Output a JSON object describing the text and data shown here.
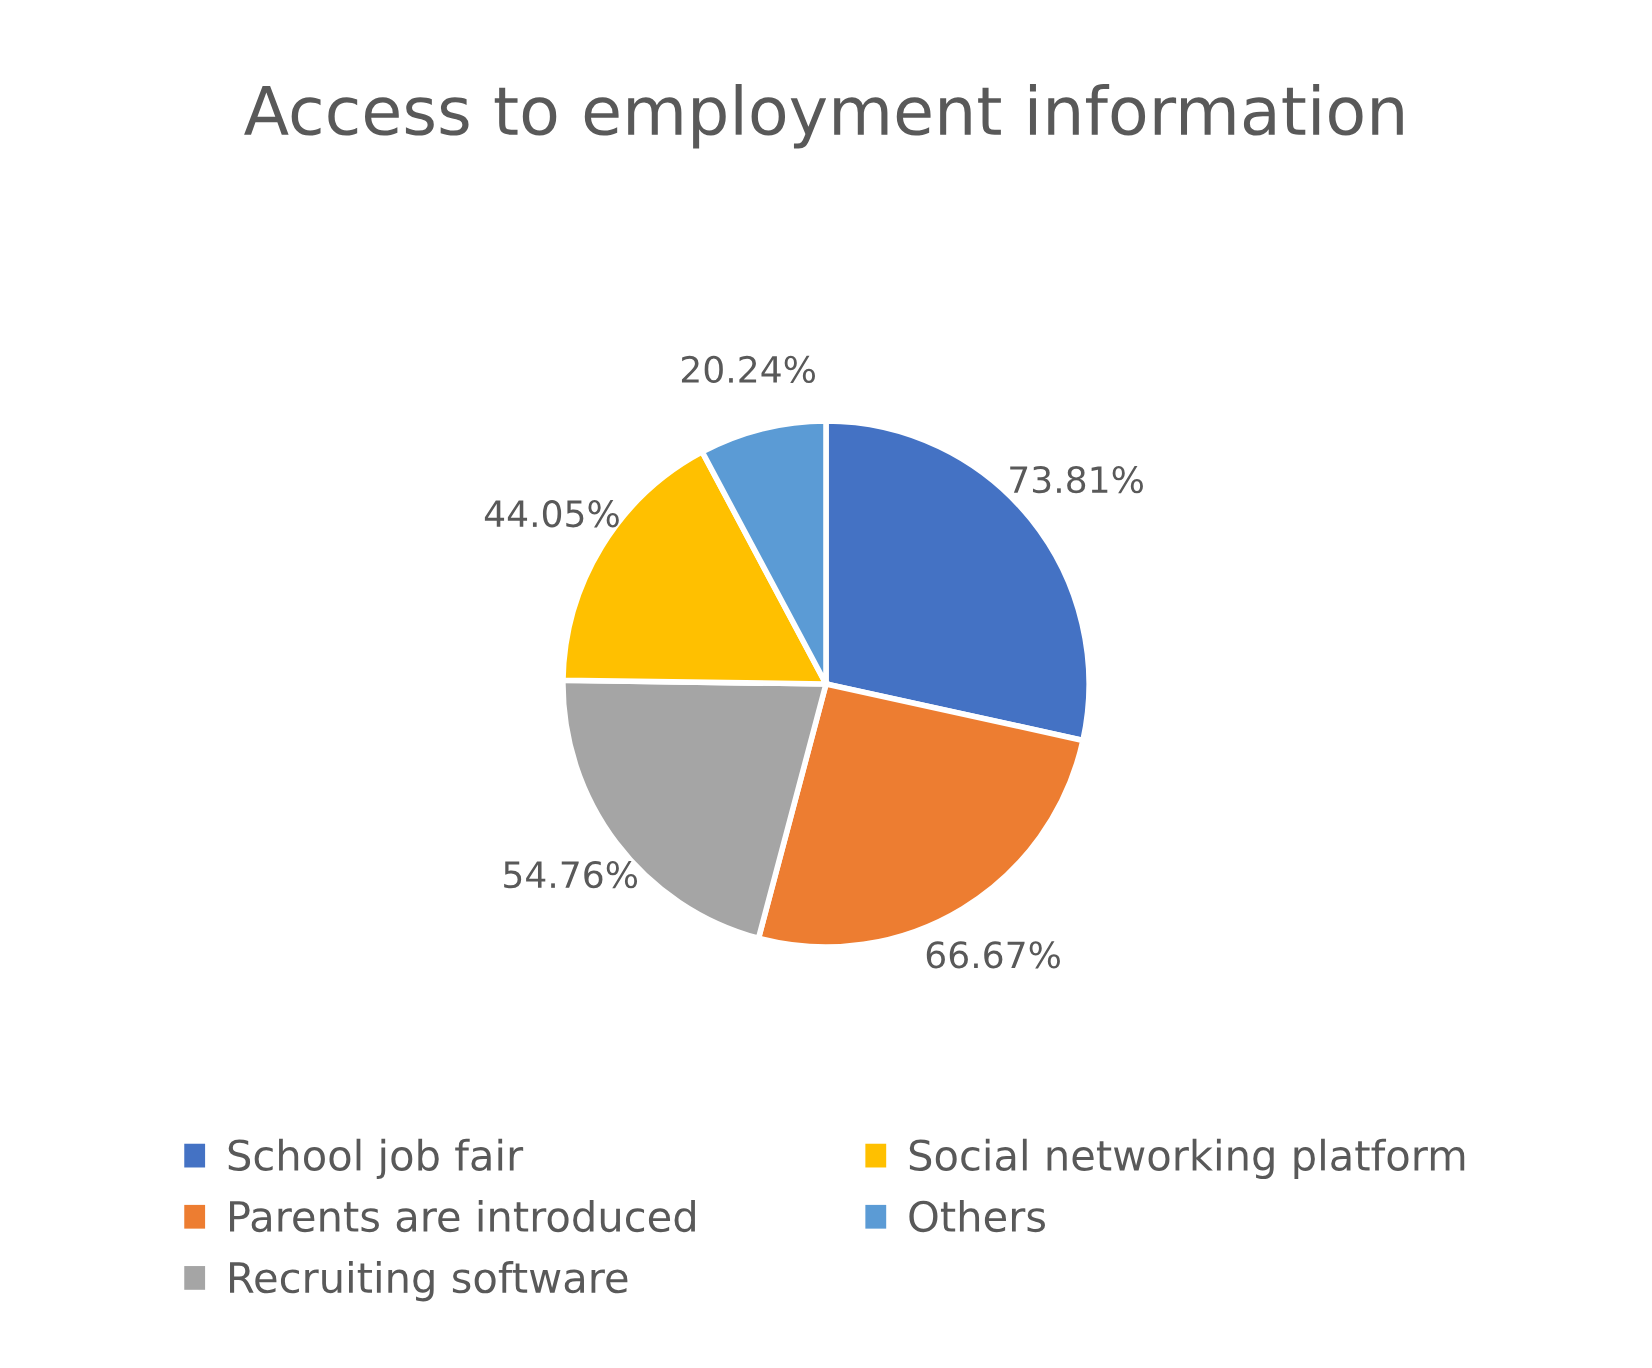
{
  "chart_data": {
    "type": "pie",
    "title": "Access to employment information",
    "categories": [
      "School job fair",
      "Parents are introduced",
      "Recruiting software",
      "Social networking platform",
      "Others"
    ],
    "values": [
      73.81,
      66.67,
      54.76,
      44.05,
      20.24
    ],
    "value_labels": [
      "73.81%",
      "66.67%",
      "54.76%",
      "44.05%",
      "20.24%"
    ],
    "colors": [
      "#4472c4",
      "#ed7d31",
      "#a5a5a5",
      "#ffc000",
      "#5b9bd5"
    ],
    "legend": "bottom"
  }
}
